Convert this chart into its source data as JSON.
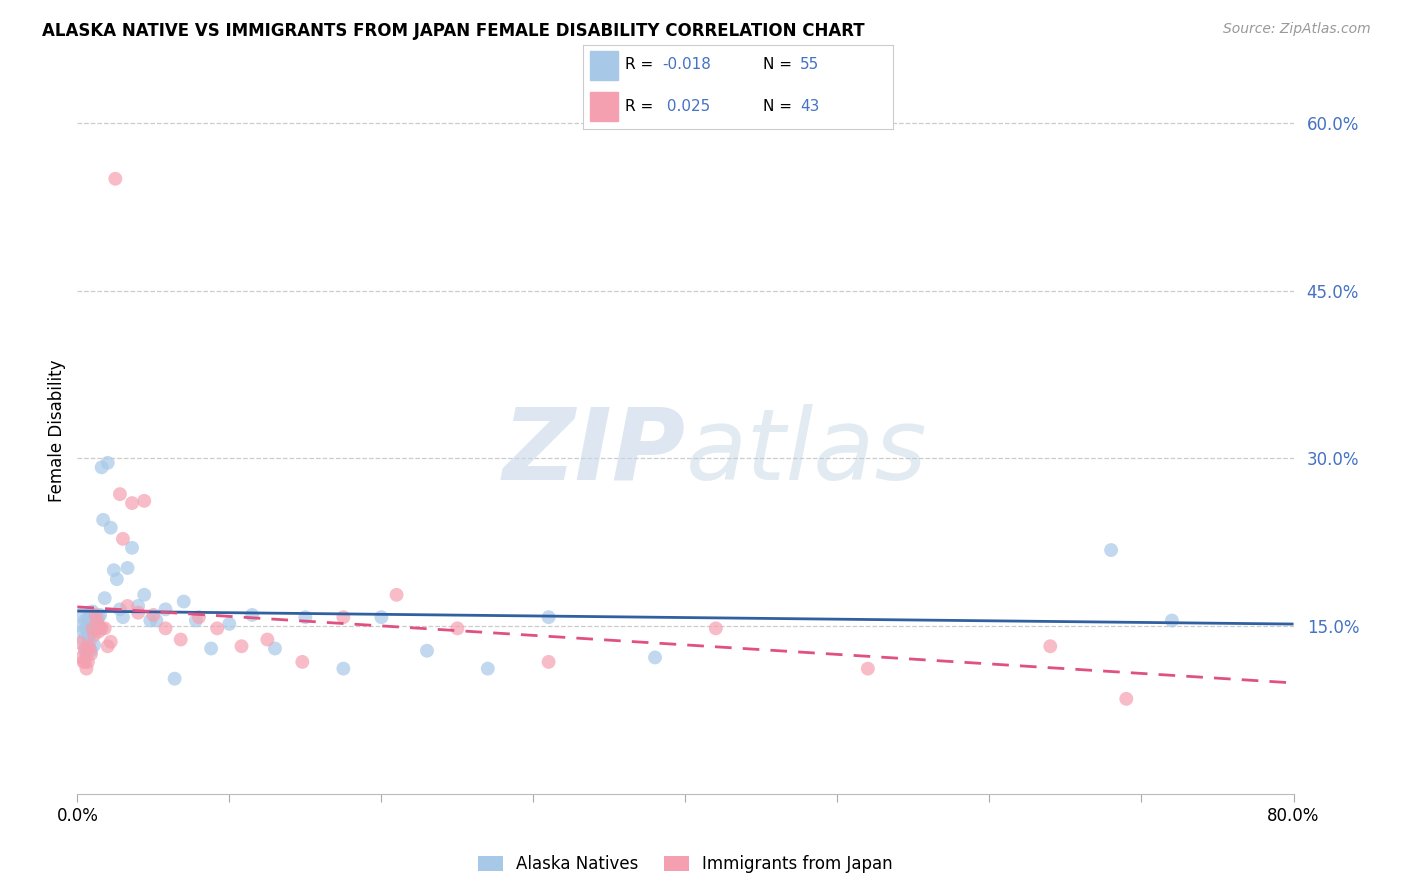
{
  "title": "ALASKA NATIVE VS IMMIGRANTS FROM JAPAN FEMALE DISABILITY CORRELATION CHART",
  "source": "Source: ZipAtlas.com",
  "ylabel": "Female Disability",
  "watermark_zip": "ZIP",
  "watermark_atlas": "atlas",
  "xlim": [
    0.0,
    0.8
  ],
  "ylim": [
    0.0,
    0.65
  ],
  "yticks": [
    0.15,
    0.3,
    0.45,
    0.6
  ],
  "ytick_labels": [
    "15.0%",
    "30.0%",
    "45.0%",
    "60.0%"
  ],
  "legend_R1": "-0.018",
  "legend_N1": "55",
  "legend_R2": "0.025",
  "legend_N2": "43",
  "color_blue": "#a8c8e8",
  "color_pink": "#f4a0b0",
  "line_blue": "#3060a0",
  "line_pink": "#e05080",
  "alaska_x": [
    0.002,
    0.003,
    0.004,
    0.004,
    0.005,
    0.005,
    0.006,
    0.006,
    0.007,
    0.007,
    0.008,
    0.008,
    0.009,
    0.009,
    0.01,
    0.01,
    0.011,
    0.011,
    0.012,
    0.012,
    0.013,
    0.014,
    0.015,
    0.016,
    0.017,
    0.018,
    0.02,
    0.022,
    0.024,
    0.026,
    0.028,
    0.03,
    0.033,
    0.036,
    0.04,
    0.044,
    0.048,
    0.052,
    0.058,
    0.064,
    0.07,
    0.078,
    0.088,
    0.1,
    0.115,
    0.13,
    0.15,
    0.175,
    0.2,
    0.23,
    0.27,
    0.31,
    0.38,
    0.68,
    0.72
  ],
  "alaska_y": [
    0.16,
    0.15,
    0.145,
    0.138,
    0.155,
    0.13,
    0.148,
    0.125,
    0.155,
    0.14,
    0.162,
    0.135,
    0.158,
    0.128,
    0.163,
    0.145,
    0.155,
    0.133,
    0.148,
    0.155,
    0.152,
    0.158,
    0.16,
    0.292,
    0.245,
    0.175,
    0.296,
    0.238,
    0.2,
    0.192,
    0.165,
    0.158,
    0.202,
    0.22,
    0.168,
    0.178,
    0.155,
    0.155,
    0.165,
    0.103,
    0.172,
    0.155,
    0.13,
    0.152,
    0.16,
    0.13,
    0.158,
    0.112,
    0.158,
    0.128,
    0.112,
    0.158,
    0.122,
    0.218,
    0.155
  ],
  "japan_x": [
    0.002,
    0.003,
    0.004,
    0.005,
    0.005,
    0.006,
    0.007,
    0.007,
    0.008,
    0.009,
    0.01,
    0.011,
    0.012,
    0.013,
    0.014,
    0.015,
    0.016,
    0.018,
    0.02,
    0.022,
    0.025,
    0.028,
    0.03,
    0.033,
    0.036,
    0.04,
    0.044,
    0.05,
    0.058,
    0.068,
    0.08,
    0.092,
    0.108,
    0.125,
    0.148,
    0.175,
    0.21,
    0.25,
    0.31,
    0.42,
    0.52,
    0.64,
    0.69
  ],
  "japan_y": [
    0.135,
    0.122,
    0.118,
    0.128,
    0.118,
    0.112,
    0.132,
    0.118,
    0.13,
    0.125,
    0.148,
    0.142,
    0.16,
    0.155,
    0.145,
    0.148,
    0.148,
    0.148,
    0.132,
    0.136,
    0.55,
    0.268,
    0.228,
    0.168,
    0.26,
    0.162,
    0.262,
    0.16,
    0.148,
    0.138,
    0.158,
    0.148,
    0.132,
    0.138,
    0.118,
    0.158,
    0.178,
    0.148,
    0.118,
    0.148,
    0.112,
    0.132,
    0.085
  ]
}
